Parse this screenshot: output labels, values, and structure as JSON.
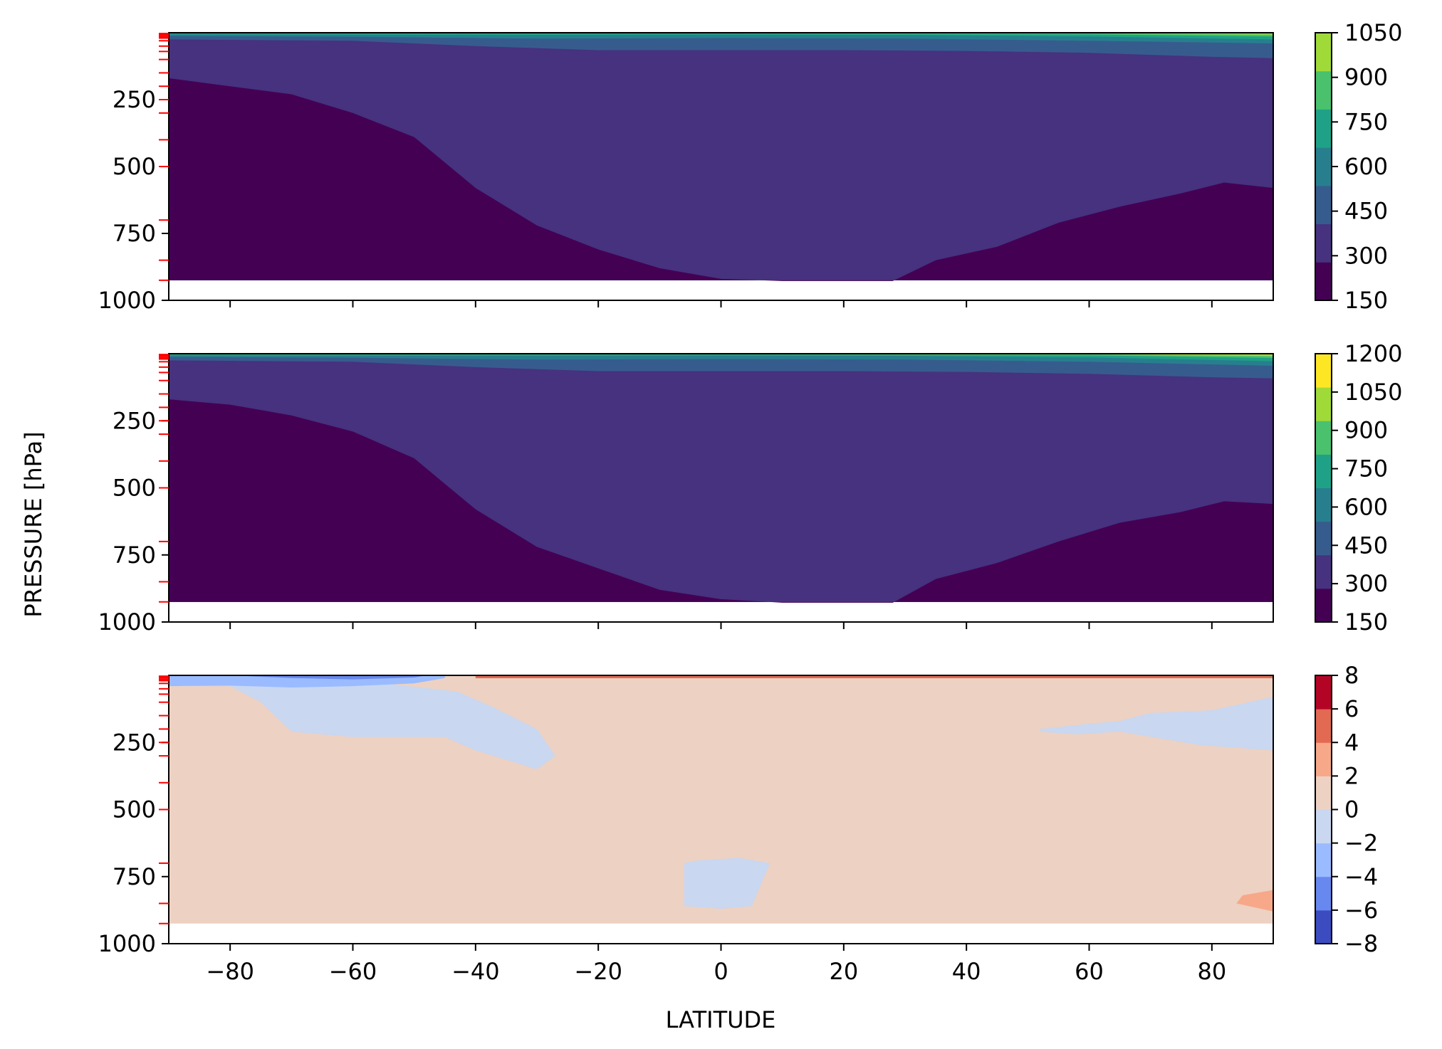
{
  "figure": {
    "ylabel": "PRESSURE [hPa]",
    "xlabel": "LATITUDE"
  },
  "chart_data": [
    {
      "type": "contour",
      "panel": "top",
      "x": [
        -90,
        -80,
        -70,
        -60,
        -50,
        -40,
        -30,
        -20,
        -10,
        0,
        10,
        20,
        30,
        40,
        50,
        60,
        70,
        80,
        90
      ],
      "xlim": [
        -90,
        90
      ],
      "ylim": [
        1000,
        0
      ],
      "yticks": [
        250,
        500,
        750,
        1000
      ],
      "xticks": [
        -80,
        -60,
        -40,
        -20,
        0,
        20,
        40,
        60,
        80
      ],
      "colorbar_ticks": [
        150,
        300,
        450,
        600,
        750,
        900,
        1050
      ],
      "levels": [
        150,
        225,
        300,
        375,
        450,
        525,
        600,
        675,
        750,
        825,
        900,
        975,
        1050
      ],
      "colors": [
        "#440154",
        "#46327e",
        "#365c8d",
        "#277f8e",
        "#1fa187",
        "#4ac16d",
        "#a0da39"
      ],
      "boundary_150_300": [
        [
          -90,
          170
        ],
        [
          -80,
          200
        ],
        [
          -70,
          230
        ],
        [
          -60,
          300
        ],
        [
          -50,
          390
        ],
        [
          -40,
          580
        ],
        [
          -30,
          720
        ],
        [
          -20,
          810
        ],
        [
          -10,
          880
        ],
        [
          0,
          920
        ],
        [
          10,
          928
        ],
        [
          20,
          928
        ],
        [
          28,
          928
        ],
        [
          35,
          850
        ],
        [
          45,
          800
        ],
        [
          55,
          710
        ],
        [
          65,
          650
        ],
        [
          75,
          600
        ],
        [
          82,
          560
        ],
        [
          90,
          580
        ]
      ],
      "boundary_300_450": [
        [
          -90,
          25
        ],
        [
          -60,
          30
        ],
        [
          -40,
          50
        ],
        [
          -20,
          65
        ],
        [
          0,
          65
        ],
        [
          20,
          65
        ],
        [
          40,
          68
        ],
        [
          60,
          75
        ],
        [
          80,
          90
        ],
        [
          90,
          95
        ]
      ],
      "boundary_450_600": [
        [
          -90,
          12
        ],
        [
          -60,
          15
        ],
        [
          -30,
          22
        ],
        [
          0,
          20
        ],
        [
          30,
          22
        ],
        [
          60,
          30
        ],
        [
          90,
          40
        ]
      ],
      "boundary_600_750": [
        [
          -90,
          6
        ],
        [
          -30,
          8
        ],
        [
          0,
          7
        ],
        [
          30,
          8
        ],
        [
          60,
          14
        ],
        [
          90,
          25
        ]
      ],
      "boundary_750_900": [
        [
          -90,
          3
        ],
        [
          0,
          3
        ],
        [
          60,
          6
        ],
        [
          90,
          14
        ]
      ],
      "boundary_900_1050": [
        [
          -90,
          1
        ],
        [
          60,
          2
        ],
        [
          90,
          7
        ]
      ],
      "red_ticks_hpa": [
        3,
        7,
        10,
        15,
        20,
        30,
        50,
        70,
        100,
        150,
        200,
        250,
        300,
        400,
        500,
        700,
        850,
        925
      ]
    },
    {
      "type": "contour",
      "panel": "middle",
      "x": [
        -90,
        -80,
        -70,
        -60,
        -50,
        -40,
        -30,
        -20,
        -10,
        0,
        10,
        20,
        30,
        40,
        50,
        60,
        70,
        80,
        90
      ],
      "xlim": [
        -90,
        90
      ],
      "ylim": [
        1000,
        0
      ],
      "yticks": [
        250,
        500,
        750,
        1000
      ],
      "xticks": [
        -80,
        -60,
        -40,
        -20,
        0,
        20,
        40,
        60,
        80
      ],
      "colorbar_ticks": [
        150,
        300,
        450,
        600,
        750,
        900,
        1050,
        1200
      ],
      "levels": [
        150,
        225,
        300,
        375,
        450,
        525,
        600,
        675,
        750,
        825,
        900,
        975,
        1050,
        1125,
        1200
      ],
      "colors": [
        "#440154",
        "#46327e",
        "#365c8d",
        "#277f8e",
        "#1fa187",
        "#4ac16d",
        "#a0da39",
        "#fde725"
      ],
      "boundary_150_300": [
        [
          -90,
          170
        ],
        [
          -80,
          190
        ],
        [
          -70,
          230
        ],
        [
          -60,
          290
        ],
        [
          -50,
          390
        ],
        [
          -40,
          580
        ],
        [
          -30,
          720
        ],
        [
          -20,
          800
        ],
        [
          -10,
          880
        ],
        [
          0,
          915
        ],
        [
          10,
          928
        ],
        [
          20,
          928
        ],
        [
          28,
          928
        ],
        [
          35,
          840
        ],
        [
          45,
          780
        ],
        [
          55,
          700
        ],
        [
          65,
          630
        ],
        [
          75,
          590
        ],
        [
          82,
          550
        ],
        [
          90,
          560
        ]
      ],
      "boundary_300_450": [
        [
          -90,
          25
        ],
        [
          -60,
          30
        ],
        [
          -40,
          50
        ],
        [
          -20,
          65
        ],
        [
          0,
          65
        ],
        [
          20,
          65
        ],
        [
          40,
          68
        ],
        [
          60,
          75
        ],
        [
          80,
          88
        ],
        [
          90,
          92
        ]
      ],
      "boundary_450_600": [
        [
          -90,
          12
        ],
        [
          -60,
          15
        ],
        [
          -30,
          22
        ],
        [
          0,
          20
        ],
        [
          30,
          22
        ],
        [
          60,
          30
        ],
        [
          90,
          45
        ]
      ],
      "boundary_600_750": [
        [
          -90,
          6
        ],
        [
          -30,
          8
        ],
        [
          0,
          7
        ],
        [
          30,
          8
        ],
        [
          60,
          14
        ],
        [
          90,
          28
        ]
      ],
      "boundary_750_900": [
        [
          -90,
          3
        ],
        [
          0,
          3
        ],
        [
          60,
          6
        ],
        [
          90,
          16
        ]
      ],
      "boundary_900_1050": [
        [
          -90,
          1
        ],
        [
          60,
          2
        ],
        [
          90,
          9
        ]
      ],
      "boundary_1050_1200": [
        [
          -90,
          0
        ],
        [
          70,
          1
        ],
        [
          90,
          3
        ]
      ],
      "red_ticks_hpa": [
        3,
        7,
        10,
        15,
        20,
        30,
        50,
        70,
        100,
        150,
        200,
        250,
        300,
        400,
        500,
        700,
        850,
        925
      ]
    },
    {
      "type": "contour",
      "panel": "bottom",
      "x": [
        -90,
        -80,
        -70,
        -60,
        -50,
        -40,
        -30,
        -20,
        -10,
        0,
        10,
        20,
        30,
        40,
        50,
        60,
        70,
        80,
        90
      ],
      "xlim": [
        -90,
        90
      ],
      "ylim": [
        1000,
        0
      ],
      "yticks": [
        250,
        500,
        750,
        1000
      ],
      "xticks": [
        -80,
        -60,
        -40,
        -20,
        0,
        20,
        40,
        60,
        80
      ],
      "colorbar_ticks": [
        8,
        6,
        4,
        2,
        0,
        "−2",
        "−4",
        "−6",
        "−8"
      ],
      "levels": [
        -8,
        -6,
        -4,
        -2,
        0,
        2,
        4,
        6,
        8
      ],
      "colors": [
        "#3b4cc0",
        "#6788ee",
        "#9abbff",
        "#c9d7f0",
        "#edd1c2",
        "#f7a889",
        "#e26952",
        "#b40426"
      ],
      "region_neg2_0": [
        [
          -90,
          40
        ],
        [
          -80,
          40
        ],
        [
          -75,
          100
        ],
        [
          -70,
          210
        ],
        [
          -60,
          230
        ],
        [
          -45,
          230
        ],
        [
          -40,
          280
        ],
        [
          -30,
          350
        ],
        [
          -27,
          300
        ],
        [
          -30,
          200
        ],
        [
          -37,
          120
        ],
        [
          -43,
          60
        ],
        [
          -55,
          30
        ],
        [
          -90,
          25
        ]
      ],
      "region_neg4_neg2": [
        [
          -90,
          0
        ],
        [
          -90,
          40
        ],
        [
          -80,
          38
        ],
        [
          -70,
          45
        ],
        [
          -60,
          40
        ],
        [
          -50,
          30
        ],
        [
          -45,
          10
        ],
        [
          -45,
          0
        ]
      ],
      "region_neg6_neg4": [
        [
          -80,
          0
        ],
        [
          -70,
          10
        ],
        [
          -60,
          15
        ],
        [
          -50,
          8
        ],
        [
          -48,
          0
        ]
      ],
      "region_neg2_0_b": [
        [
          -6,
          700
        ],
        [
          -6,
          860
        ],
        [
          0,
          870
        ],
        [
          5,
          860
        ],
        [
          8,
          700
        ],
        [
          3,
          680
        ],
        [
          -4,
          690
        ]
      ],
      "region_neg2_0_c": [
        [
          52,
          200
        ],
        [
          60,
          180
        ],
        [
          65,
          170
        ],
        [
          70,
          140
        ],
        [
          80,
          130
        ],
        [
          90,
          80
        ],
        [
          90,
          280
        ],
        [
          78,
          260
        ],
        [
          65,
          210
        ],
        [
          58,
          220
        ],
        [
          52,
          210
        ]
      ],
      "region_pos2_4": [
        [
          85,
          820
        ],
        [
          90,
          800
        ],
        [
          90,
          880
        ],
        [
          84,
          850
        ]
      ],
      "red_ticks_hpa": [
        3,
        7,
        10,
        15,
        20,
        30,
        50,
        70,
        100,
        150,
        200,
        250,
        300,
        400,
        500,
        700,
        850,
        925
      ]
    }
  ]
}
